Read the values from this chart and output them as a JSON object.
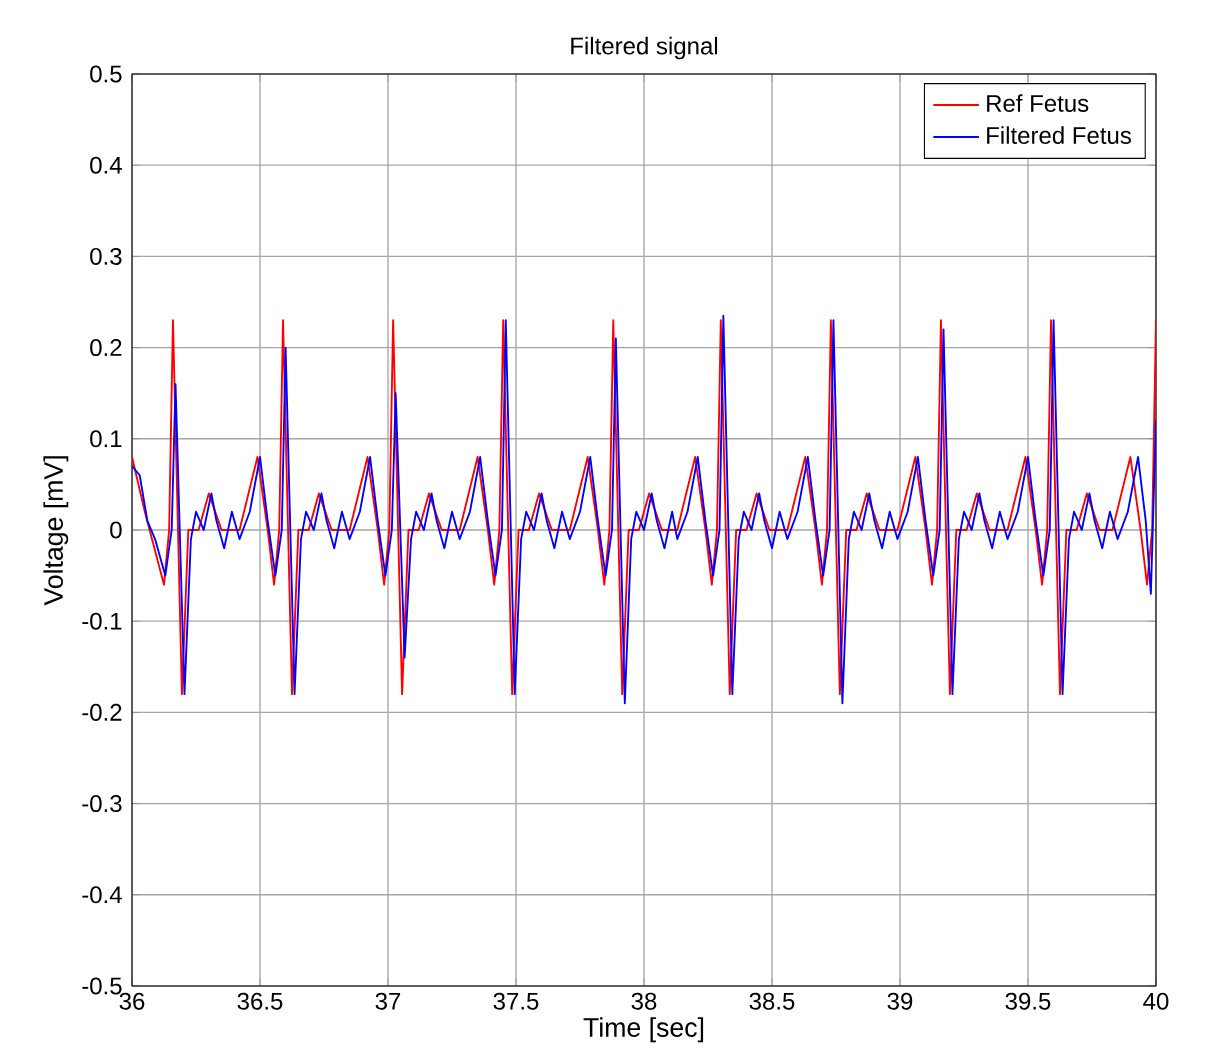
{
  "chart_data": {
    "type": "line",
    "title": "Filtered signal",
    "xlabel": "Time [sec]",
    "ylabel": "Voltage [mV]",
    "xlim": [
      36,
      40
    ],
    "xticks": [
      36,
      36.5,
      37,
      37.5,
      38,
      38.5,
      39,
      39.5,
      40
    ],
    "ylim": [
      -0.5,
      0.5
    ],
    "yticks": [
      -0.5,
      -0.4,
      -0.3,
      -0.2,
      -0.1,
      0,
      0.1,
      0.2,
      0.3,
      0.4,
      0.5
    ],
    "grid": true,
    "legend": "top right",
    "marker": "none",
    "line_style": "solid",
    "series": [
      {
        "name": "Ref Fetus",
        "color": "#ff0000",
        "x": [
          36.0,
          36.05,
          36.125,
          36.145,
          36.16,
          36.195,
          36.22,
          36.26,
          36.3,
          36.35,
          36.42,
          36.49,
          36.53,
          36.555,
          36.575,
          36.59,
          36.625,
          36.65,
          36.69,
          36.73,
          36.78,
          36.85,
          36.92,
          36.96,
          36.985,
          37.005,
          37.02,
          37.055,
          37.08,
          37.12,
          37.16,
          37.21,
          37.28,
          37.35,
          37.39,
          37.415,
          37.435,
          37.45,
          37.485,
          37.51,
          37.55,
          37.59,
          37.64,
          37.71,
          37.78,
          37.82,
          37.845,
          37.865,
          37.88,
          37.915,
          37.94,
          37.98,
          38.02,
          38.07,
          38.13,
          38.2,
          38.24,
          38.265,
          38.285,
          38.3,
          38.335,
          38.36,
          38.4,
          38.44,
          38.49,
          38.56,
          38.63,
          38.67,
          38.695,
          38.715,
          38.73,
          38.765,
          38.79,
          38.83,
          38.87,
          38.92,
          38.99,
          39.06,
          39.1,
          39.125,
          39.145,
          39.16,
          39.195,
          39.22,
          39.26,
          39.3,
          39.35,
          39.42,
          39.49,
          39.53,
          39.555,
          39.575,
          39.59,
          39.625,
          39.65,
          39.69,
          39.73,
          39.78,
          39.83,
          39.9,
          39.94,
          39.965,
          39.985,
          40.0
        ],
        "values": [
          0.08,
          0.02,
          -0.06,
          0,
          0.23,
          -0.18,
          0,
          0,
          0.04,
          0,
          0,
          0.08,
          0,
          -0.06,
          0,
          0.23,
          -0.18,
          0,
          0,
          0.04,
          0,
          0,
          0.08,
          0,
          -0.06,
          0,
          0.23,
          -0.18,
          0,
          0,
          0.04,
          0,
          0,
          0.08,
          0,
          -0.06,
          0,
          0.23,
          -0.18,
          0,
          0,
          0.04,
          0,
          0,
          0.08,
          0,
          -0.06,
          0,
          0.23,
          -0.18,
          0,
          0,
          0.04,
          0,
          0,
          0.08,
          0,
          -0.06,
          0,
          0.23,
          -0.18,
          0,
          0,
          0.04,
          0,
          0,
          0.08,
          0,
          -0.06,
          0,
          0.23,
          -0.18,
          0,
          0,
          0.04,
          0,
          0,
          0.08,
          0,
          -0.06,
          0,
          0.23,
          -0.18,
          0,
          0,
          0.04,
          0,
          0,
          0.08,
          0,
          -0.06,
          0,
          0.23,
          -0.18,
          0,
          0,
          0.04,
          0,
          0,
          0.08,
          0,
          -0.06,
          0,
          0.23
        ]
      },
      {
        "name": "Filtered Fetus",
        "color": "#0000ff",
        "x": [
          36.0,
          36.03,
          36.06,
          36.09,
          36.13,
          36.155,
          36.17,
          36.205,
          36.23,
          36.25,
          36.28,
          36.31,
          36.33,
          36.36,
          36.39,
          36.42,
          36.46,
          36.5,
          36.53,
          36.56,
          36.585,
          36.6,
          36.635,
          36.66,
          36.68,
          36.71,
          36.74,
          36.76,
          36.79,
          36.82,
          36.85,
          36.89,
          36.93,
          36.96,
          36.99,
          37.015,
          37.03,
          37.065,
          37.09,
          37.11,
          37.14,
          37.17,
          37.19,
          37.22,
          37.25,
          37.28,
          37.32,
          37.36,
          37.39,
          37.42,
          37.445,
          37.46,
          37.495,
          37.52,
          37.54,
          37.57,
          37.6,
          37.62,
          37.65,
          37.68,
          37.71,
          37.75,
          37.79,
          37.82,
          37.85,
          37.875,
          37.89,
          37.925,
          37.95,
          37.97,
          38.0,
          38.03,
          38.05,
          38.08,
          38.11,
          38.13,
          38.17,
          38.21,
          38.24,
          38.27,
          38.295,
          38.31,
          38.345,
          38.37,
          38.39,
          38.42,
          38.45,
          38.47,
          38.5,
          38.53,
          38.56,
          38.6,
          38.64,
          38.67,
          38.7,
          38.725,
          38.74,
          38.775,
          38.8,
          38.82,
          38.85,
          38.88,
          38.9,
          38.93,
          38.96,
          38.99,
          39.03,
          39.07,
          39.1,
          39.13,
          39.155,
          39.17,
          39.205,
          39.23,
          39.25,
          39.28,
          39.31,
          39.33,
          39.36,
          39.39,
          39.42,
          39.46,
          39.5,
          39.53,
          39.56,
          39.585,
          39.6,
          39.635,
          39.66,
          39.68,
          39.71,
          39.74,
          39.76,
          39.79,
          39.82,
          39.85,
          39.89,
          39.93,
          39.96,
          39.98,
          40.0
        ],
        "values": [
          0.07,
          0.06,
          0.01,
          -0.01,
          -0.05,
          0,
          0.16,
          -0.18,
          -0.01,
          0.02,
          0,
          0.04,
          0.01,
          -0.02,
          0.02,
          -0.01,
          0.02,
          0.08,
          0.01,
          -0.05,
          0,
          0.2,
          -0.18,
          -0.01,
          0.02,
          0,
          0.04,
          0.01,
          -0.02,
          0.02,
          -0.01,
          0.02,
          0.08,
          0.01,
          -0.05,
          0,
          0.15,
          -0.14,
          -0.01,
          0.02,
          0,
          0.04,
          0.01,
          -0.02,
          0.02,
          -0.01,
          0.02,
          0.08,
          0.01,
          -0.05,
          0,
          0.23,
          -0.18,
          -0.01,
          0.02,
          0,
          0.04,
          0.01,
          -0.02,
          0.02,
          -0.01,
          0.02,
          0.08,
          0.01,
          -0.05,
          0,
          0.21,
          -0.19,
          -0.01,
          0.02,
          0,
          0.04,
          0.01,
          -0.02,
          0.02,
          -0.01,
          0.02,
          0.08,
          0.01,
          -0.05,
          0,
          0.235,
          -0.18,
          -0.01,
          0.02,
          0,
          0.04,
          0.01,
          -0.02,
          0.02,
          -0.01,
          0.02,
          0.08,
          0.01,
          -0.05,
          0,
          0.23,
          -0.19,
          -0.01,
          0.02,
          0,
          0.04,
          0.01,
          -0.02,
          0.02,
          -0.01,
          0.02,
          0.08,
          0.01,
          -0.05,
          0,
          0.22,
          -0.18,
          -0.01,
          0.02,
          0,
          0.04,
          0.01,
          -0.02,
          0.02,
          -0.01,
          0.02,
          0.08,
          0.01,
          -0.05,
          0,
          0.23,
          -0.18,
          -0.01,
          0.02,
          0,
          0.04,
          0.01,
          -0.02,
          0.02,
          -0.01,
          0.02,
          0.08,
          0.01,
          -0.07,
          0.12
        ]
      }
    ]
  }
}
